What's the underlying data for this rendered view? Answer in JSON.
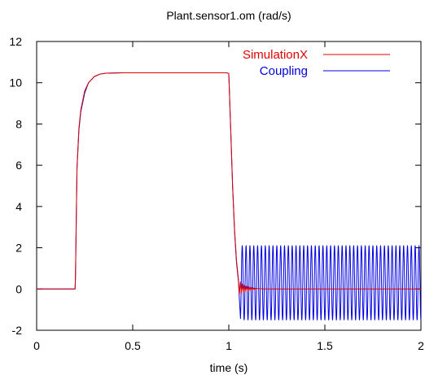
{
  "chart_data": {
    "type": "line",
    "title": "Plant.sensor1.om (rad/s)",
    "xlabel": "time (s)",
    "ylabel": "",
    "xlim": [
      0,
      2
    ],
    "ylim": [
      -2,
      12
    ],
    "xticks": [
      0,
      0.5,
      1,
      1.5,
      2
    ],
    "xtick_labels": [
      "0",
      "0.5",
      "1",
      "1.5",
      "2"
    ],
    "yticks": [
      -2,
      0,
      2,
      4,
      6,
      8,
      10,
      12
    ],
    "ytick_labels": [
      "-2",
      "0",
      "2",
      "4",
      "6",
      "8",
      "10",
      "12"
    ],
    "grid": false,
    "legend_position": "top-right",
    "series": [
      {
        "name": "SimulationX",
        "color": "#e00000",
        "x": [
          0,
          0.2,
          0.202,
          0.21,
          0.22,
          0.23,
          0.25,
          0.27,
          0.3,
          0.33,
          0.36,
          0.4,
          0.45,
          0.5,
          0.6,
          0.7,
          0.8,
          0.9,
          0.99,
          1.0,
          1.01,
          1.02,
          1.03,
          1.04,
          1.05,
          1.055,
          1.06,
          1.065,
          1.07,
          1.075,
          1.08,
          1.085,
          1.09,
          1.095,
          1.1,
          1.105,
          1.11,
          1.115,
          1.12,
          1.125,
          1.13,
          1.135,
          1.14,
          1.15,
          1.16,
          1.17,
          1.18,
          1.19,
          1.2,
          1.3,
          1.4,
          1.5,
          1.6,
          1.7,
          1.8,
          1.9,
          2.0
        ],
        "y": [
          0,
          0,
          0.6,
          5.9,
          7.8,
          8.7,
          9.6,
          10.0,
          10.3,
          10.42,
          10.46,
          10.47,
          10.48,
          10.48,
          10.48,
          10.48,
          10.48,
          10.48,
          10.48,
          10.45,
          7.8,
          5.0,
          2.9,
          1.4,
          0.5,
          -0.25,
          0.35,
          -0.2,
          0.25,
          -0.15,
          0.18,
          -0.12,
          0.14,
          -0.1,
          0.11,
          -0.08,
          0.09,
          -0.06,
          0.07,
          -0.05,
          0.05,
          -0.04,
          0.03,
          0.02,
          0.01,
          0.01,
          0,
          0,
          0,
          0,
          0,
          0,
          0,
          0,
          0,
          0,
          0
        ]
      },
      {
        "name": "Coupling",
        "color": "#0000e0",
        "x": [
          0,
          0.2,
          0.202,
          0.21,
          0.22,
          0.23,
          0.25,
          0.27,
          0.3,
          0.33,
          0.36,
          0.4,
          0.45,
          0.5,
          0.6,
          0.7,
          0.8,
          0.9,
          0.99,
          1.0,
          1.01,
          1.02,
          1.03,
          1.04,
          1.05,
          1.06
        ],
        "y": [
          0,
          0,
          0.5,
          5.8,
          7.7,
          8.6,
          9.5,
          10.0,
          10.3,
          10.42,
          10.46,
          10.47,
          10.48,
          10.48,
          10.48,
          10.48,
          10.48,
          10.48,
          10.48,
          10.45,
          7.7,
          4.9,
          2.8,
          1.3,
          0.4,
          -1.3
        ],
        "oscillation": {
          "start": 1.06,
          "end": 2.0,
          "period": 0.02,
          "amplitude": 1.8,
          "offset": 0.3
        }
      }
    ]
  }
}
